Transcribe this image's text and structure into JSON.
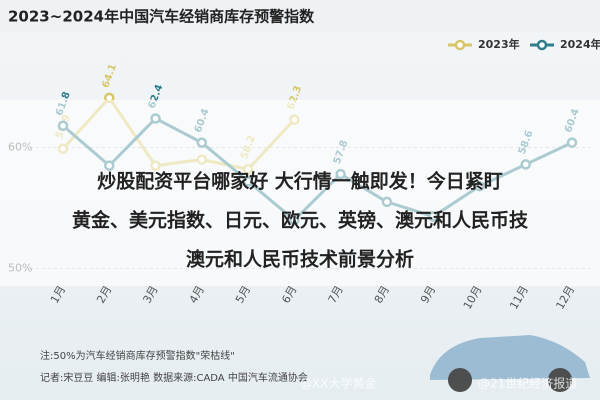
{
  "chart_data": {
    "type": "line",
    "title": "2023~2024年中国汽车经销商库存预警指数",
    "categories": [
      "1月",
      "2月",
      "3月",
      "4月",
      "5月",
      "6月",
      "7月",
      "8月",
      "9月",
      "10月",
      "11月",
      "12月"
    ],
    "series": [
      {
        "name": "2023年",
        "color": "#d8c76a",
        "values": [
          59.9,
          64.1,
          58.5,
          59.0,
          58.2,
          62.3,
          null,
          null,
          null,
          null,
          null,
          null
        ],
        "value_labels": [
          "59.9",
          "64.1",
          null,
          null,
          "58.2",
          "62.3",
          null,
          null,
          null,
          null,
          null,
          null
        ]
      },
      {
        "name": "2024年",
        "color": "#2e7d8c",
        "values": [
          61.8,
          58.5,
          62.4,
          60.4,
          57.2,
          54.0,
          57.8,
          55.5,
          54.3,
          56.8,
          58.6,
          60.4
        ],
        "value_labels": [
          "61.8",
          null,
          "62.4",
          "60.4",
          null,
          null,
          "57.8",
          null,
          null,
          null,
          "58.6",
          "60.4"
        ]
      }
    ],
    "ylim": [
      48.8,
      68.8
    ],
    "yticks": [
      {
        "value": 50,
        "label": "50%"
      },
      {
        "value": 60,
        "label": "60%"
      }
    ],
    "notes": [
      "注:50%为汽车经销商库存预警指数\"荣枯线\"",
      "记者:宋豆豆  编辑:张明艳  数据来源:CADA 中国汽车流通协会"
    ],
    "banner": [
      "炒股配资平台哪家好 大行情一触即发！今日紧盯",
      "黄金、美元指数、日元、欧元、英镑、澳元和人民币技",
      "澳元和人民币技术前景分析"
    ],
    "watermarks": [
      "@XX大学黄金",
      "@21世纪经济报道"
    ]
  }
}
